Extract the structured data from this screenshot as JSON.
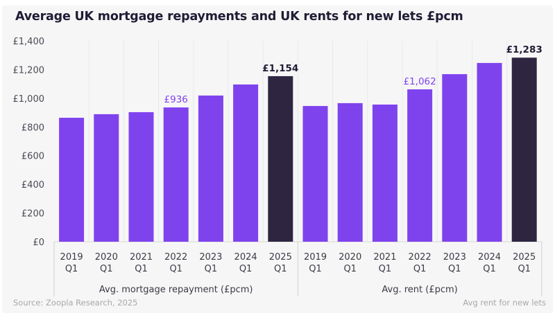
{
  "chart_data": {
    "type": "bar",
    "title": "Average UK mortgage repayments and UK rents for new lets £pcm",
    "ylim": [
      0,
      1400
    ],
    "y_ticks": [
      "£0",
      "£200",
      "£400",
      "£600",
      "£800",
      "£1,000",
      "£1,200",
      "£1,400"
    ],
    "y_tick_values": [
      0,
      200,
      400,
      600,
      800,
      1000,
      1200,
      1400
    ],
    "grid": "vertical separators",
    "colors": {
      "bar": "#7f43ee",
      "highlight": "#2e2641",
      "label_purple": "#7f43ee",
      "label_dark": "#1f1c35"
    },
    "groups": [
      {
        "name": "Avg. mortgage repayment (£pcm)",
        "categories": [
          [
            "2019",
            "Q1"
          ],
          [
            "2020",
            "Q1"
          ],
          [
            "2021",
            "Q1"
          ],
          [
            "2022",
            "Q1"
          ],
          [
            "2023",
            "Q1"
          ],
          [
            "2024",
            "Q1"
          ],
          [
            "2025",
            "Q1"
          ]
        ],
        "values": [
          864,
          889,
          903,
          936,
          1019,
          1096,
          1154
        ],
        "data_labels": {
          "3": "£936",
          "6": "£1,154"
        }
      },
      {
        "name": "Avg. rent (£pcm)",
        "categories": [
          [
            "2019",
            "Q1"
          ],
          [
            "2020",
            "Q1"
          ],
          [
            "2021",
            "Q1"
          ],
          [
            "2022",
            "Q1"
          ],
          [
            "2023",
            "Q1"
          ],
          [
            "2024",
            "Q1"
          ],
          [
            "2025",
            "Q1"
          ]
        ],
        "values": [
          946,
          966,
          956,
          1062,
          1168,
          1246,
          1283
        ],
        "data_labels": {
          "3": "£1,062",
          "6": "£1,283"
        }
      }
    ]
  },
  "footer": {
    "source": "Source: Zoopla Research, 2025",
    "note": "Avg rent for new lets"
  }
}
